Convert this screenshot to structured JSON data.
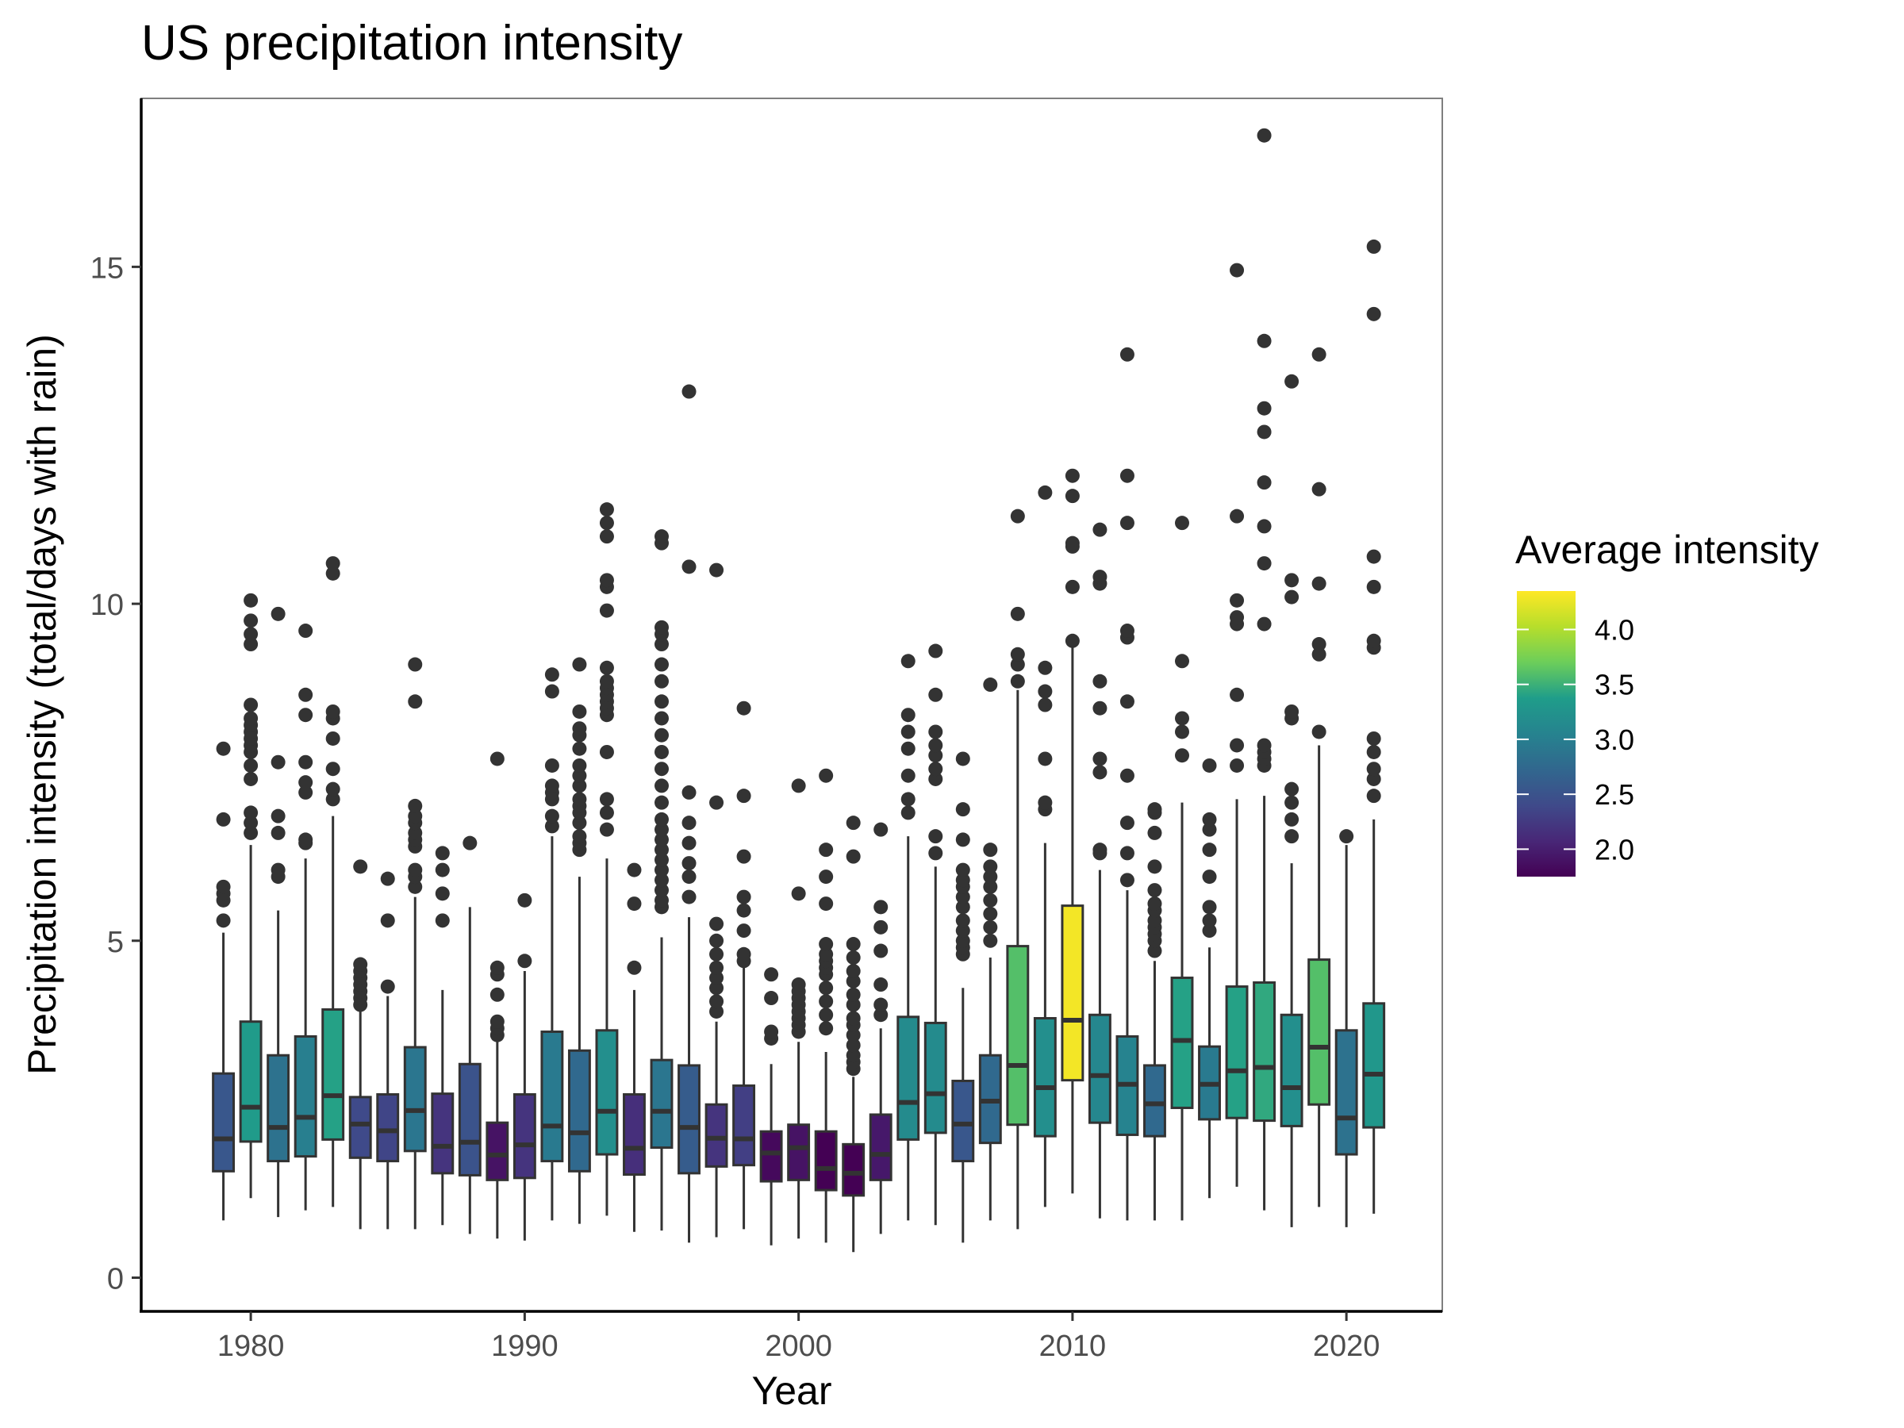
{
  "chart_data": {
    "type": "boxplot",
    "title": "US precipitation intensity",
    "xlabel": "Year",
    "ylabel": "Precipitation intensity (total/days with rain)",
    "xlim": [
      1976,
      2023.5
    ],
    "ylim": [
      -0.5,
      17.5
    ],
    "x_ticks": [
      1980,
      1990,
      2000,
      2010,
      2020
    ],
    "y_ticks": [
      0,
      5,
      10,
      15
    ],
    "legend": {
      "title": "Average intensity",
      "placement": "right",
      "type": "colorbar",
      "range": [
        1.75,
        4.35
      ],
      "ticks": [
        2.0,
        2.5,
        3.0,
        3.5,
        4.0
      ],
      "tick_labels": [
        "2.0",
        "2.5",
        "3.0",
        "3.5",
        "4.0"
      ],
      "palette": "viridis"
    },
    "colors": {
      "viridis_stops": [
        "#440154",
        "#482777",
        "#3f4a8a",
        "#31678e",
        "#26838f",
        "#1f9d8a",
        "#6cce5a",
        "#b6de2b",
        "#fee825"
      ],
      "axis": "#000000",
      "panel_border": "#7f7f7f",
      "outline": "#333333",
      "tick_label": "#4d4d4d"
    },
    "boxes": [
      {
        "year": 1979,
        "q1": 1.58,
        "median": 2.06,
        "q3": 3.03,
        "wlow": 0.85,
        "whigh": 5.12,
        "mean": 2.55,
        "outliers": [
          5.3,
          5.6,
          5.7,
          5.8,
          6.8,
          7.85
        ]
      },
      {
        "year": 1980,
        "q1": 2.02,
        "median": 2.53,
        "q3": 3.8,
        "wlow": 1.18,
        "whigh": 6.42,
        "mean": 3.35,
        "outliers": [
          6.6,
          6.75,
          6.9,
          7.4,
          7.6,
          7.8,
          7.9,
          8.0,
          8.1,
          8.2,
          8.3,
          8.5,
          9.4,
          9.55,
          9.75,
          10.05
        ]
      },
      {
        "year": 1981,
        "q1": 1.73,
        "median": 2.23,
        "q3": 3.3,
        "wlow": 0.9,
        "whigh": 5.45,
        "mean": 2.85,
        "outliers": [
          5.95,
          6.05,
          6.6,
          6.85,
          7.65,
          9.85
        ]
      },
      {
        "year": 1982,
        "q1": 1.8,
        "median": 2.38,
        "q3": 3.58,
        "wlow": 1.0,
        "whigh": 6.22,
        "mean": 3.0,
        "outliers": [
          6.45,
          6.5,
          7.2,
          7.35,
          7.65,
          8.35,
          8.65,
          9.6
        ]
      },
      {
        "year": 1983,
        "q1": 2.05,
        "median": 2.7,
        "q3": 3.98,
        "wlow": 1.05,
        "whigh": 6.85,
        "mean": 3.4,
        "outliers": [
          7.1,
          7.25,
          7.55,
          8.0,
          8.3,
          8.4,
          10.45,
          10.6
        ]
      },
      {
        "year": 1984,
        "q1": 1.78,
        "median": 2.28,
        "q3": 2.68,
        "wlow": 0.72,
        "whigh": 4.0,
        "mean": 2.4,
        "outliers": [
          4.05,
          4.15,
          4.25,
          4.35,
          4.45,
          4.55,
          4.65,
          6.1
        ]
      },
      {
        "year": 1985,
        "q1": 1.73,
        "median": 2.18,
        "q3": 2.72,
        "wlow": 0.72,
        "whigh": 4.18,
        "mean": 2.35,
        "outliers": [
          4.32,
          5.3,
          5.92
        ]
      },
      {
        "year": 1986,
        "q1": 1.88,
        "median": 2.48,
        "q3": 3.42,
        "wlow": 0.72,
        "whigh": 5.65,
        "mean": 2.9,
        "outliers": [
          5.8,
          5.95,
          6.05,
          6.4,
          6.5,
          6.6,
          6.75,
          6.85,
          7.0,
          8.55,
          9.1
        ]
      },
      {
        "year": 1987,
        "q1": 1.55,
        "median": 1.95,
        "q3": 2.73,
        "wlow": 0.78,
        "whigh": 4.27,
        "mean": 2.2,
        "outliers": [
          5.3,
          5.7,
          6.05,
          6.3
        ]
      },
      {
        "year": 1988,
        "q1": 1.52,
        "median": 2.01,
        "q3": 3.17,
        "wlow": 0.65,
        "whigh": 5.5,
        "mean": 2.5,
        "outliers": [
          6.45
        ]
      },
      {
        "year": 1989,
        "q1": 1.45,
        "median": 1.82,
        "q3": 2.3,
        "wlow": 0.58,
        "whigh": 3.5,
        "mean": 1.9,
        "outliers": [
          3.6,
          3.7,
          3.8,
          4.2,
          4.5,
          4.6,
          7.7
        ]
      },
      {
        "year": 1990,
        "q1": 1.48,
        "median": 1.97,
        "q3": 2.72,
        "wlow": 0.55,
        "whigh": 4.55,
        "mean": 2.2,
        "outliers": [
          4.7,
          5.6
        ]
      },
      {
        "year": 1991,
        "q1": 1.73,
        "median": 2.25,
        "q3": 3.65,
        "wlow": 0.85,
        "whigh": 6.55,
        "mean": 2.95,
        "outliers": [
          6.7,
          6.85,
          7.1,
          7.2,
          7.3,
          7.6,
          8.7,
          8.95
        ]
      },
      {
        "year": 1992,
        "q1": 1.58,
        "median": 2.15,
        "q3": 3.37,
        "wlow": 0.8,
        "whigh": 5.95,
        "mean": 2.75,
        "outliers": [
          6.35,
          6.45,
          6.55,
          6.75,
          6.9,
          7.0,
          7.1,
          7.3,
          7.45,
          7.6,
          7.85,
          8.05,
          8.15,
          8.4,
          9.1
        ]
      },
      {
        "year": 1993,
        "q1": 1.83,
        "median": 2.47,
        "q3": 3.67,
        "wlow": 0.92,
        "whigh": 6.22,
        "mean": 3.2,
        "outliers": [
          6.65,
          6.9,
          7.1,
          7.8,
          8.35,
          8.45,
          8.55,
          8.65,
          8.75,
          8.85,
          9.05,
          9.9,
          10.25,
          10.35,
          11.0,
          11.2,
          11.4
        ]
      },
      {
        "year": 1994,
        "q1": 1.53,
        "median": 1.92,
        "q3": 2.72,
        "wlow": 0.68,
        "whigh": 4.27,
        "mean": 2.15,
        "outliers": [
          4.6,
          5.55,
          6.05
        ]
      },
      {
        "year": 1995,
        "q1": 1.93,
        "median": 2.47,
        "q3": 3.23,
        "wlow": 0.7,
        "whigh": 5.05,
        "mean": 2.9,
        "outliers": [
          5.5,
          5.6,
          5.75,
          5.9,
          6.05,
          6.2,
          6.35,
          6.5,
          6.65,
          6.8,
          7.05,
          7.3,
          7.55,
          7.8,
          8.05,
          8.3,
          8.55,
          8.85,
          9.1,
          9.4,
          9.55,
          9.65,
          10.9,
          11.0
        ]
      },
      {
        "year": 1996,
        "q1": 1.55,
        "median": 2.23,
        "q3": 3.15,
        "wlow": 0.52,
        "whigh": 5.35,
        "mean": 2.6,
        "outliers": [
          5.65,
          5.95,
          6.15,
          6.45,
          6.75,
          7.2,
          10.55,
          13.15
        ]
      },
      {
        "year": 1997,
        "q1": 1.65,
        "median": 2.07,
        "q3": 2.57,
        "wlow": 0.6,
        "whigh": 3.8,
        "mean": 2.2,
        "outliers": [
          3.95,
          4.1,
          4.3,
          4.45,
          4.6,
          4.8,
          5.0,
          5.25,
          7.05,
          10.5
        ]
      },
      {
        "year": 1998,
        "q1": 1.67,
        "median": 2.06,
        "q3": 2.85,
        "wlow": 0.72,
        "whigh": 4.6,
        "mean": 2.3,
        "outliers": [
          4.7,
          4.8,
          5.15,
          5.45,
          5.65,
          6.25,
          7.15,
          8.45
        ]
      },
      {
        "year": 1999,
        "q1": 1.43,
        "median": 1.85,
        "q3": 2.17,
        "wlow": 0.48,
        "whigh": 3.17,
        "mean": 1.82,
        "outliers": [
          3.55,
          3.65,
          4.15,
          4.5
        ]
      },
      {
        "year": 2000,
        "q1": 1.45,
        "median": 1.93,
        "q3": 2.27,
        "wlow": 0.58,
        "whigh": 3.5,
        "mean": 1.9,
        "outliers": [
          3.65,
          3.75,
          3.85,
          3.95,
          4.05,
          4.15,
          4.25,
          4.35,
          5.7,
          7.3
        ]
      },
      {
        "year": 2001,
        "q1": 1.3,
        "median": 1.62,
        "q3": 2.17,
        "wlow": 0.52,
        "whigh": 3.35,
        "mean": 1.75,
        "outliers": [
          3.7,
          3.9,
          4.1,
          4.3,
          4.5,
          4.6,
          4.7,
          4.8,
          4.95,
          5.55,
          5.95,
          6.35,
          7.45
        ]
      },
      {
        "year": 2002,
        "q1": 1.22,
        "median": 1.55,
        "q3": 1.98,
        "wlow": 0.38,
        "whigh": 2.98,
        "mean": 1.7,
        "outliers": [
          3.1,
          3.2,
          3.3,
          3.45,
          3.6,
          3.75,
          3.85,
          4.05,
          4.2,
          4.4,
          4.55,
          4.75,
          4.95,
          6.25,
          6.75
        ]
      },
      {
        "year": 2003,
        "q1": 1.45,
        "median": 1.83,
        "q3": 2.42,
        "wlow": 0.65,
        "whigh": 3.7,
        "mean": 1.95,
        "outliers": [
          3.9,
          4.05,
          4.35,
          4.85,
          5.2,
          5.5,
          6.65
        ]
      },
      {
        "year": 2004,
        "q1": 2.05,
        "median": 2.6,
        "q3": 3.87,
        "wlow": 0.85,
        "whigh": 6.55,
        "mean": 3.15,
        "outliers": [
          6.9,
          7.1,
          7.45,
          7.85,
          8.1,
          8.35,
          9.15
        ]
      },
      {
        "year": 2005,
        "q1": 2.15,
        "median": 2.73,
        "q3": 3.78,
        "wlow": 0.78,
        "whigh": 6.1,
        "mean": 3.15,
        "outliers": [
          6.3,
          6.55,
          7.4,
          7.55,
          7.75,
          7.9,
          8.1,
          8.65,
          9.3
        ]
      },
      {
        "year": 2006,
        "q1": 1.73,
        "median": 2.28,
        "q3": 2.92,
        "wlow": 0.52,
        "whigh": 4.3,
        "mean": 2.55,
        "outliers": [
          4.8,
          4.9,
          5.0,
          5.15,
          5.3,
          5.5,
          5.65,
          5.8,
          5.9,
          6.05,
          6.5,
          6.95,
          7.7
        ]
      },
      {
        "year": 2007,
        "q1": 2.0,
        "median": 2.62,
        "q3": 3.3,
        "wlow": 0.85,
        "whigh": 4.75,
        "mean": 2.75,
        "outliers": [
          5.0,
          5.2,
          5.4,
          5.6,
          5.8,
          5.95,
          6.1,
          6.35,
          8.8
        ]
      },
      {
        "year": 2008,
        "q1": 2.27,
        "median": 3.15,
        "q3": 4.92,
        "wlow": 0.72,
        "whigh": 8.72,
        "mean": 3.6,
        "outliers": [
          8.85,
          9.1,
          9.25,
          9.85,
          11.3
        ]
      },
      {
        "year": 2009,
        "q1": 2.1,
        "median": 2.82,
        "q3": 3.85,
        "wlow": 1.05,
        "whigh": 6.45,
        "mean": 3.2,
        "outliers": [
          6.95,
          7.05,
          7.7,
          8.5,
          8.7,
          9.05,
          11.65
        ]
      },
      {
        "year": 2010,
        "q1": 2.93,
        "median": 3.82,
        "q3": 5.52,
        "wlow": 1.25,
        "whigh": 9.35,
        "mean": 4.3,
        "outliers": [
          9.45,
          10.25,
          10.85,
          10.9,
          11.6,
          11.9
        ]
      },
      {
        "year": 2011,
        "q1": 2.3,
        "median": 3.0,
        "q3": 3.9,
        "wlow": 0.88,
        "whigh": 6.05,
        "mean": 3.1,
        "outliers": [
          6.3,
          6.35,
          7.5,
          7.7,
          8.45,
          8.85,
          10.3,
          10.4,
          11.1
        ]
      },
      {
        "year": 2012,
        "q1": 2.12,
        "median": 2.87,
        "q3": 3.58,
        "wlow": 0.85,
        "whigh": 5.75,
        "mean": 3.05,
        "outliers": [
          5.9,
          6.3,
          6.75,
          7.45,
          8.55,
          9.5,
          9.6,
          11.2,
          11.9,
          13.7
        ]
      },
      {
        "year": 2013,
        "q1": 2.1,
        "median": 2.58,
        "q3": 3.15,
        "wlow": 0.85,
        "whigh": 4.7,
        "mean": 2.75,
        "outliers": [
          4.85,
          5.0,
          5.1,
          5.2,
          5.3,
          5.45,
          5.55,
          5.75,
          6.1,
          6.6,
          6.9,
          6.95
        ]
      },
      {
        "year": 2014,
        "q1": 2.52,
        "median": 3.52,
        "q3": 4.45,
        "wlow": 0.85,
        "whigh": 7.05,
        "mean": 3.4,
        "outliers": [
          7.75,
          8.1,
          8.3,
          9.15,
          11.2
        ]
      },
      {
        "year": 2015,
        "q1": 2.35,
        "median": 2.87,
        "q3": 3.43,
        "wlow": 1.18,
        "whigh": 4.9,
        "mean": 2.95,
        "outliers": [
          5.15,
          5.3,
          5.5,
          5.95,
          6.35,
          6.65,
          6.8,
          7.6
        ]
      },
      {
        "year": 2016,
        "q1": 2.37,
        "median": 3.07,
        "q3": 4.32,
        "wlow": 1.35,
        "whigh": 7.1,
        "mean": 3.4,
        "outliers": [
          7.6,
          7.9,
          8.65,
          9.7,
          9.8,
          10.05,
          11.3,
          14.95
        ]
      },
      {
        "year": 2017,
        "q1": 2.33,
        "median": 3.12,
        "q3": 4.38,
        "wlow": 1.0,
        "whigh": 7.15,
        "mean": 3.45,
        "outliers": [
          7.6,
          7.7,
          7.8,
          7.9,
          9.7,
          10.6,
          11.15,
          11.8,
          12.55,
          12.9,
          13.9,
          16.95
        ]
      },
      {
        "year": 2018,
        "q1": 2.25,
        "median": 2.82,
        "q3": 3.9,
        "wlow": 0.75,
        "whigh": 6.15,
        "mean": 3.2,
        "outliers": [
          6.55,
          6.8,
          7.05,
          7.25,
          8.3,
          8.4,
          10.1,
          10.35,
          13.3
        ]
      },
      {
        "year": 2019,
        "q1": 2.57,
        "median": 3.42,
        "q3": 4.72,
        "wlow": 1.05,
        "whigh": 7.9,
        "mean": 3.6,
        "outliers": [
          8.1,
          9.25,
          9.4,
          10.3,
          11.7,
          13.7
        ]
      },
      {
        "year": 2020,
        "q1": 1.83,
        "median": 2.37,
        "q3": 3.67,
        "wlow": 0.75,
        "whigh": 6.42,
        "mean": 2.85,
        "outliers": [
          6.55
        ]
      },
      {
        "year": 2021,
        "q1": 2.23,
        "median": 3.02,
        "q3": 4.07,
        "wlow": 0.95,
        "whigh": 6.8,
        "mean": 3.3,
        "outliers": [
          7.15,
          7.4,
          7.55,
          7.8,
          8.0,
          9.35,
          9.45,
          10.25,
          10.7,
          14.3,
          15.3
        ]
      }
    ]
  }
}
